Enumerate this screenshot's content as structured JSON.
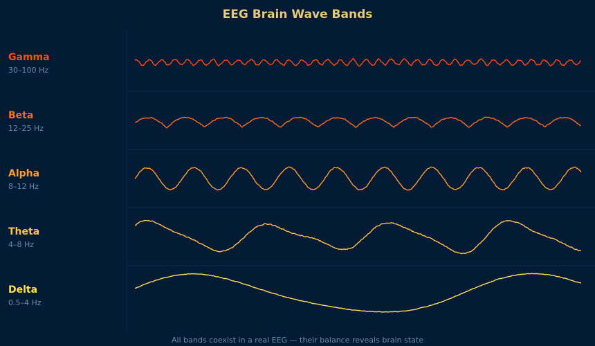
{
  "chart_data": {
    "type": "line",
    "title": "EEG Brain Wave Bands",
    "footer": "All bands coexist in a real EEG — their balance reveals brain state",
    "grid": false,
    "series": [
      {
        "name": "Gamma",
        "range": "30–100 Hz",
        "color": "#ff4a12",
        "cycles_shown": 35,
        "relative_amplitude": 0.2,
        "shape": "noisy-sine"
      },
      {
        "name": "Beta",
        "range": "12–25 Hz",
        "color": "#ff6a1c",
        "cycles_shown": 11.8,
        "relative_amplitude": 0.45,
        "shape": "cusped-troughs"
      },
      {
        "name": "Alpha",
        "range": "8–12 Hz",
        "color": "#ff9a2e",
        "cycles_shown": 9.4,
        "relative_amplitude": 0.85,
        "shape": "sine"
      },
      {
        "name": "Theta",
        "range": "4–8 Hz",
        "color": "#ffc04a",
        "cycles_shown": 3.7,
        "relative_amplitude": 1.0,
        "shape": "irregular-sine"
      },
      {
        "name": "Delta",
        "range": "0.5–4 Hz",
        "color": "#ffdd55",
        "cycles_shown": 1.32,
        "relative_amplitude": 1.0,
        "shape": "slow-sine"
      }
    ]
  }
}
